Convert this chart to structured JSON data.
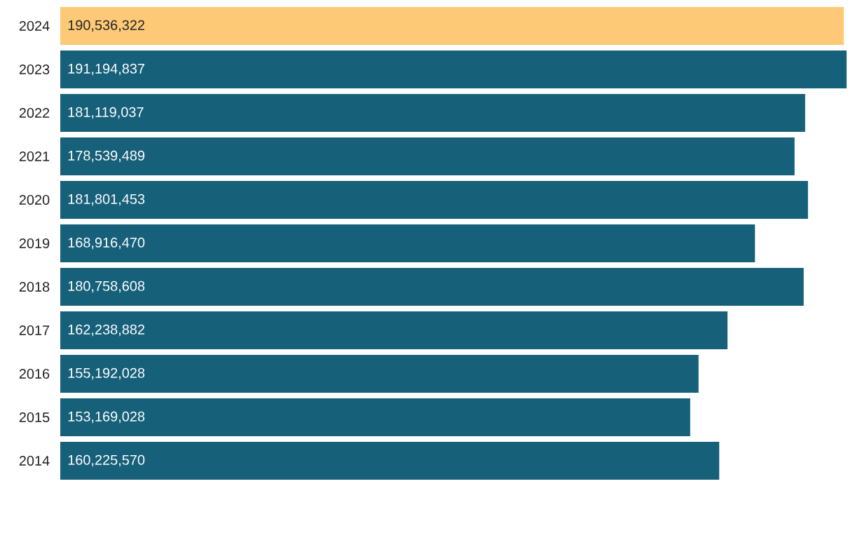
{
  "chart_data": {
    "type": "bar",
    "orientation": "horizontal",
    "categories": [
      "2024",
      "2023",
      "2022",
      "2021",
      "2020",
      "2019",
      "2018",
      "2017",
      "2016",
      "2015",
      "2014"
    ],
    "values": [
      190536322,
      191194837,
      181119037,
      178539489,
      181801453,
      168916470,
      180758608,
      162238882,
      155192028,
      153169028,
      160225570
    ],
    "value_labels": [
      "190,536,322",
      "191,194,837",
      "181,119,037",
      "178,539,489",
      "181,801,453",
      "168,916,470",
      "180,758,608",
      "162,238,882",
      "155,192,028",
      "153,169,028",
      "160,225,570"
    ],
    "colors": [
      "#fdc976",
      "#17607a",
      "#17607a",
      "#17607a",
      "#17607a",
      "#17607a",
      "#17607a",
      "#17607a",
      "#17607a",
      "#17607a",
      "#17607a"
    ],
    "xlim": [
      0,
      191194837
    ],
    "tick_labels": "y"
  }
}
